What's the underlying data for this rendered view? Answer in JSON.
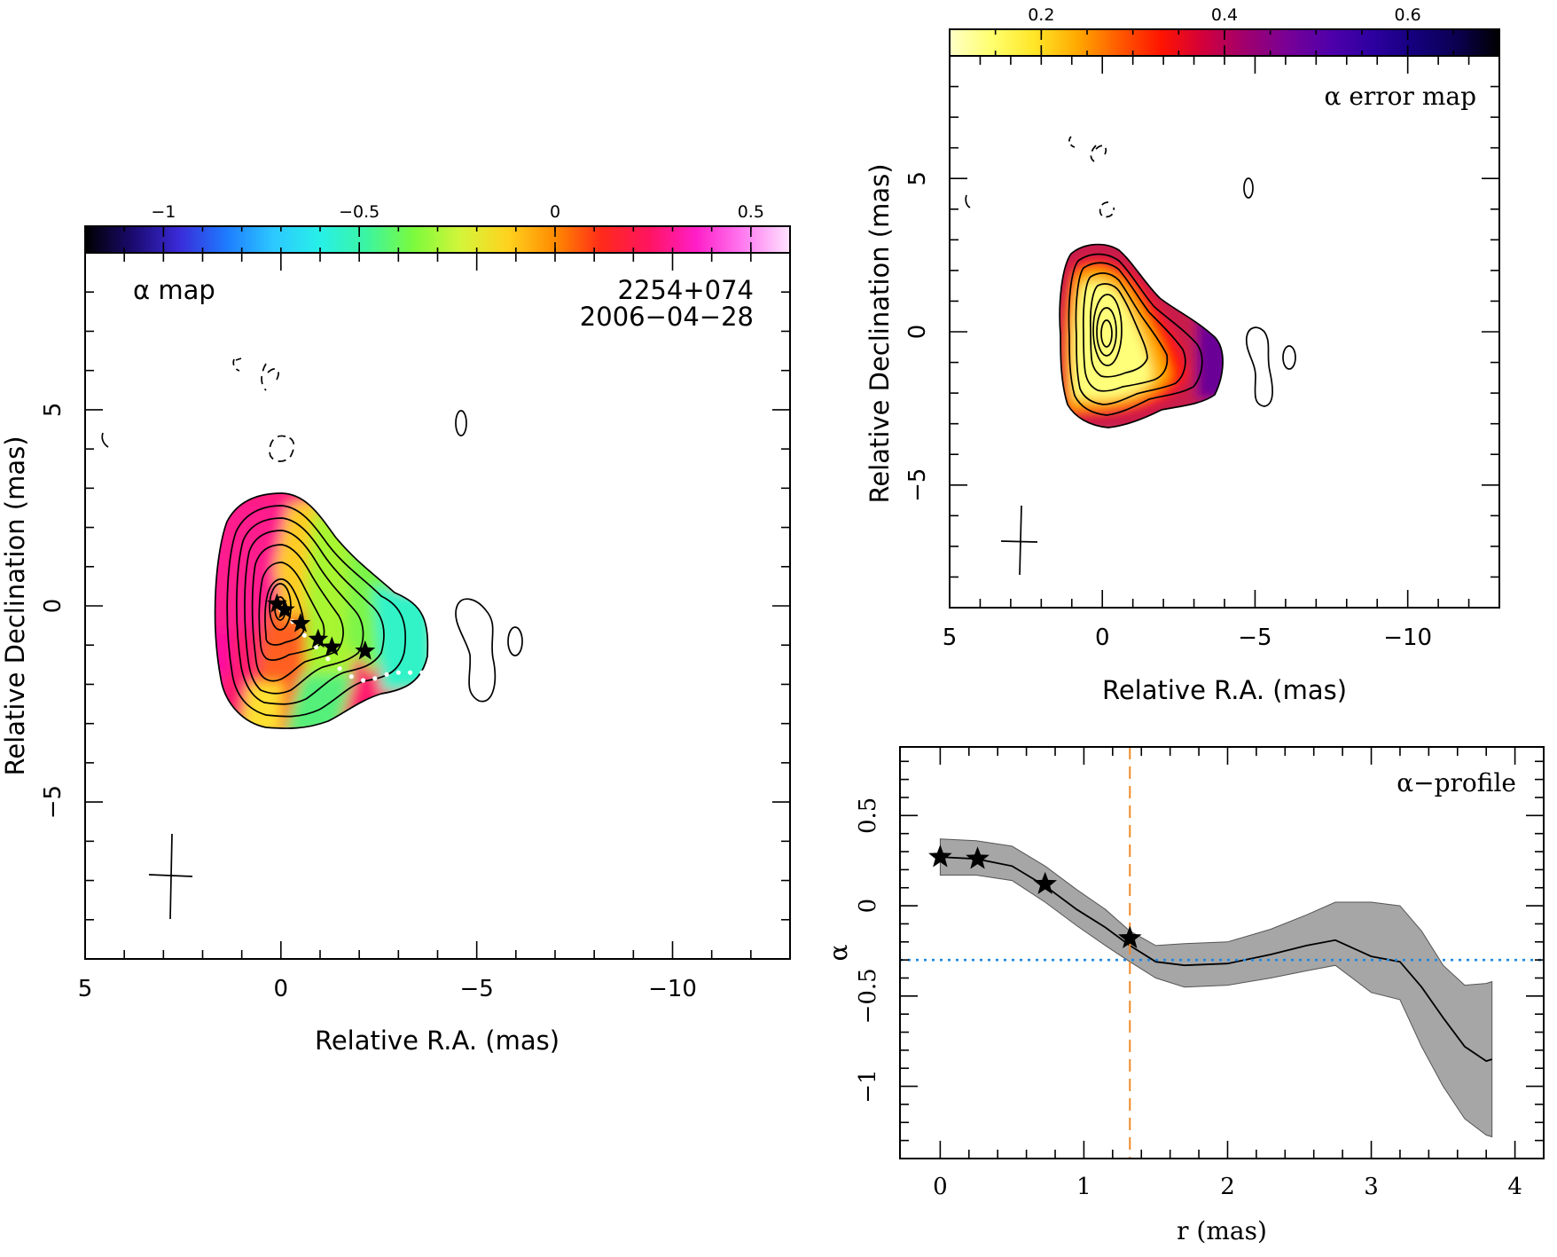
{
  "chart_data": [
    {
      "type": "heatmap",
      "panel": "alpha-map",
      "title": "α map",
      "source": "2254+074",
      "date": "2006−04−28",
      "xlabel": "Relative R.A. (mas)",
      "ylabel": "Relative Declination (mas)",
      "xlim": [
        5,
        -13
      ],
      "ylim": [
        -9,
        9
      ],
      "xticks": [
        5,
        0,
        -5,
        -10
      ],
      "xtick_labels": [
        "5",
        "0",
        "−5",
        "−10"
      ],
      "yticks": [
        5,
        0,
        -5
      ],
      "ytick_labels": [
        "5",
        "0",
        "−5"
      ],
      "colorbar": {
        "range": [
          -1.2,
          0.6
        ],
        "ticks": [
          -1,
          -0.5,
          0,
          0.5
        ],
        "tick_labels": [
          "−1",
          "−0.5",
          "0",
          "0.5"
        ],
        "colors": [
          "#000000",
          "#1a0a6e",
          "#3a2ad8",
          "#1e7bff",
          "#2cc8ff",
          "#27f0e8",
          "#3cf5a0",
          "#7dfa3c",
          "#d4f53a",
          "#ffd21e",
          "#ff8a00",
          "#ff2a1a",
          "#ff1460",
          "#ff1ec8",
          "#ff7af0",
          "#ffe4ff"
        ]
      },
      "component_markers": {
        "x": [
          0.1,
          -0.1,
          -0.5,
          -0.95,
          -1.3,
          -2.15
        ],
        "y": [
          0.05,
          -0.1,
          -0.45,
          -0.85,
          -1.05,
          -1.15
        ]
      },
      "ridge_points": {
        "x": [
          0.0,
          -0.3,
          -0.6,
          -0.9,
          -1.2,
          -1.5,
          -1.8,
          -2.1,
          -2.4,
          -2.7,
          -3.0,
          -3.3,
          -3.6
        ],
        "y": [
          -0.1,
          -0.4,
          -0.75,
          -1.05,
          -1.35,
          -1.6,
          -1.8,
          -1.9,
          -1.85,
          -1.75,
          -1.7,
          -1.7,
          -1.7
        ]
      }
    },
    {
      "type": "heatmap",
      "panel": "alpha-error-map",
      "title": "α error map",
      "xlabel": "Relative R.A. (mas)",
      "ylabel": "Relative Declination (mas)",
      "xlim": [
        5,
        -13
      ],
      "ylim": [
        -9,
        9
      ],
      "xticks": [
        5,
        0,
        -5,
        -10
      ],
      "xtick_labels": [
        "5",
        "0",
        "−5",
        "−10"
      ],
      "yticks": [
        5,
        0,
        -5
      ],
      "ytick_labels": [
        "5",
        "0",
        "−5"
      ],
      "colorbar": {
        "range": [
          0.1,
          0.7
        ],
        "ticks": [
          0.2,
          0.4,
          0.6
        ],
        "tick_labels": [
          "0.2",
          "0.4",
          "0.6"
        ],
        "colors": [
          "#ffffc8",
          "#ffff6e",
          "#ffe628",
          "#ffaa00",
          "#ff5a00",
          "#ff1400",
          "#d2003c",
          "#a0006e",
          "#780096",
          "#5000aa",
          "#2d00a0",
          "#14007d",
          "#0a0050",
          "#000000"
        ]
      }
    },
    {
      "type": "line",
      "panel": "alpha-profile",
      "title": "α−profile",
      "xlabel": "r (mas)",
      "ylabel": "α",
      "xlim": [
        -0.28,
        4.2
      ],
      "ylim": [
        -1.4,
        0.88
      ],
      "xticks": [
        0,
        1,
        2,
        3,
        4
      ],
      "xtick_labels": [
        "0",
        "1",
        "2",
        "3",
        "4"
      ],
      "yticks": [
        0.5,
        0,
        -0.5,
        -1
      ],
      "ytick_labels": [
        "0.5",
        "0",
        "−0.5",
        "−1"
      ],
      "series": [
        {
          "x": [
            0.0,
            0.25,
            0.5,
            0.73,
            0.95,
            1.15,
            1.32,
            1.5,
            1.7,
            2.0,
            2.3,
            2.55,
            2.75,
            3.0,
            3.2,
            3.35,
            3.5,
            3.65,
            3.8,
            3.84
          ],
          "y": [
            0.27,
            0.26,
            0.22,
            0.11,
            -0.02,
            -0.12,
            -0.22,
            -0.31,
            -0.33,
            -0.32,
            -0.27,
            -0.22,
            -0.19,
            -0.28,
            -0.31,
            -0.45,
            -0.62,
            -0.78,
            -0.86,
            -0.85
          ],
          "y_upper": [
            0.37,
            0.36,
            0.33,
            0.22,
            0.09,
            -0.02,
            -0.14,
            -0.22,
            -0.21,
            -0.2,
            -0.13,
            -0.05,
            0.02,
            0.02,
            0.0,
            -0.14,
            -0.33,
            -0.44,
            -0.43,
            -0.42
          ],
          "y_lower": [
            0.17,
            0.17,
            0.14,
            0.02,
            -0.11,
            -0.22,
            -0.31,
            -0.4,
            -0.45,
            -0.44,
            -0.4,
            -0.36,
            -0.33,
            -0.48,
            -0.52,
            -0.78,
            -1.0,
            -1.18,
            -1.27,
            -1.28
          ]
        }
      ],
      "markers": {
        "x": [
          0.0,
          0.26,
          0.73,
          1.32
        ],
        "y": [
          0.27,
          0.26,
          0.12,
          -0.18
        ]
      },
      "vline": {
        "x": 1.32,
        "color": "#f08a28"
      },
      "hline": {
        "y": -0.3,
        "color": "#1e88e5"
      }
    }
  ]
}
